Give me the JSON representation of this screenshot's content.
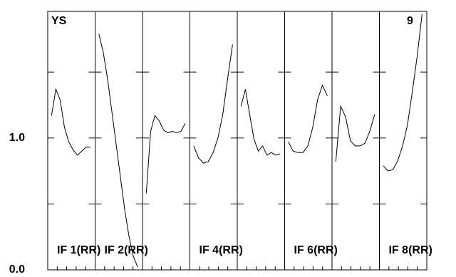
{
  "chart_data": {
    "type": "line",
    "title": "YS",
    "annotation": "9",
    "ylim": [
      0,
      1.96
    ],
    "yticks": [
      {
        "value": 0,
        "label": "0.0"
      },
      {
        "value": 1,
        "label": "1.0"
      }
    ],
    "yminor": [
      0.5,
      1.5
    ],
    "series": [
      {
        "name": "IF 1(RR)",
        "color": "#000000",
        "values": [
          1.17,
          1.37,
          1.29,
          1.08,
          0.97,
          0.91,
          0.87,
          0.9,
          0.93,
          0.93
        ]
      },
      {
        "name": "IF 2(RR)",
        "color": "#000000",
        "values": [
          1.79,
          1.65,
          1.45,
          1.2,
          0.95,
          0.7,
          0.45,
          0.25,
          0.1,
          0.02
        ]
      },
      {
        "name": null,
        "color": "#000000",
        "values": [
          0.58,
          1.05,
          1.17,
          1.13,
          1.06,
          1.04,
          1.05,
          1.04,
          1.05,
          1.11
        ]
      },
      {
        "name": "IF 4(RR)",
        "color": "#000000",
        "values": [
          0.94,
          0.85,
          0.81,
          0.82,
          0.89,
          1.0,
          1.18,
          1.45,
          1.71
        ]
      },
      {
        "name": null,
        "color": "#000000",
        "values": [
          1.24,
          1.37,
          1.18,
          0.99,
          0.9,
          0.94,
          0.87,
          0.89,
          0.87,
          0.88
        ]
      },
      {
        "name": "IF 6(RR)",
        "color": "#000000",
        "values": [
          0.97,
          0.9,
          0.89,
          0.89,
          0.94,
          1.08,
          1.29,
          1.4,
          1.32
        ]
      },
      {
        "name": null,
        "color": "#000000",
        "values": [
          0.82,
          1.24,
          1.16,
          0.98,
          0.94,
          0.94,
          0.96,
          1.05,
          1.18
        ]
      },
      {
        "name": "IF 8(RR)",
        "color": "#000000",
        "values": [
          0.79,
          0.75,
          0.76,
          0.83,
          0.94,
          1.1,
          1.35,
          1.62,
          1.94
        ]
      }
    ]
  }
}
